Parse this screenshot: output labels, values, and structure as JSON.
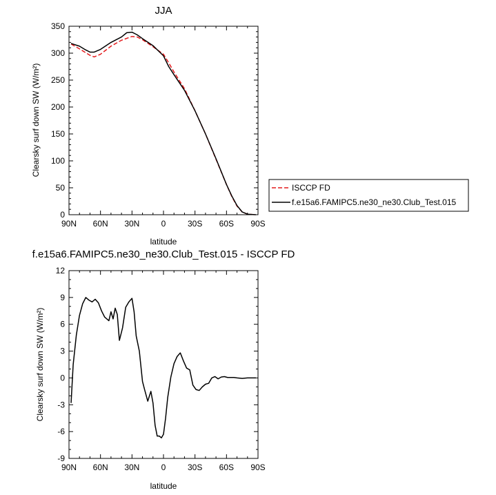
{
  "chart_data": [
    {
      "type": "line",
      "title": "JJA",
      "xlabel": "latitude",
      "ylabel": "Clearsky surf down SW (W/m²)",
      "xlim": [
        90,
        -90
      ],
      "ylim": [
        0,
        350
      ],
      "xticks": [
        90,
        60,
        30,
        0,
        -30,
        -60,
        -90
      ],
      "xtick_labels": [
        "90N",
        "60N",
        "30N",
        "0",
        "30S",
        "60S",
        "90S"
      ],
      "yticks": [
        0,
        50,
        100,
        150,
        200,
        250,
        300,
        350
      ],
      "ytick_labels": [
        "0",
        "50",
        "100",
        "150",
        "200",
        "250",
        "300",
        "350"
      ],
      "grid": false,
      "legend": "right",
      "series": [
        {
          "name": "ISCCP FD",
          "color": "#e41a1c",
          "dash": "dashed",
          "x": [
            88,
            80,
            70,
            66,
            60,
            50,
            40,
            30,
            25,
            20,
            10,
            0,
            -5,
            -10,
            -20,
            -30,
            -40,
            -50,
            -60,
            -65,
            -70,
            -75,
            -80,
            -88
          ],
          "y": [
            317,
            308,
            296,
            293,
            298,
            313,
            324,
            331,
            330,
            325,
            312,
            298,
            282,
            265,
            234,
            193,
            150,
            103,
            56,
            34,
            16,
            5,
            1,
            0
          ]
        },
        {
          "name": "f.e15a6.FAMIPC5.ne30_ne30.Club_Test.015",
          "color": "#000000",
          "dash": "solid",
          "x": [
            88,
            80,
            75,
            70,
            66,
            60,
            50,
            40,
            35,
            30,
            25,
            20,
            10,
            0,
            -5,
            -10,
            -20,
            -30,
            -40,
            -50,
            -60,
            -65,
            -70,
            -75,
            -80,
            -88
          ],
          "y": [
            318,
            313,
            307,
            302,
            302,
            307,
            320,
            330,
            338,
            339,
            334,
            327,
            314,
            295,
            275,
            260,
            231,
            193,
            150,
            104,
            56,
            35,
            17,
            5,
            1,
            0
          ]
        }
      ]
    },
    {
      "type": "line",
      "title": "f.e15a6.FAMIPC5.ne30_ne30.Club_Test.015 - ISCCP FD",
      "xlabel": "latitude",
      "ylabel": "Clearsky surf down SW (W/m²)",
      "xlim": [
        90,
        -90
      ],
      "ylim": [
        -9,
        12
      ],
      "xticks": [
        90,
        60,
        30,
        0,
        -30,
        -60,
        -90
      ],
      "xtick_labels": [
        "90N",
        "60N",
        "30N",
        "0",
        "30S",
        "60S",
        "90S"
      ],
      "yticks": [
        -9,
        -6,
        -3,
        0,
        3,
        6,
        9,
        12
      ],
      "ytick_labels": [
        "-9",
        "-6",
        "-3",
        "0",
        "3",
        "6",
        "9",
        "12"
      ],
      "grid": false,
      "series": [
        {
          "color": "#000000",
          "x": [
            88,
            86,
            83,
            80,
            77,
            74,
            71,
            68,
            65,
            62,
            59,
            56,
            54,
            52,
            50,
            48,
            46,
            44,
            42,
            39,
            36,
            33,
            30,
            28,
            26,
            23,
            20,
            18,
            15,
            12,
            10,
            8,
            6,
            4,
            2,
            0,
            -2,
            -4,
            -7,
            -10,
            -13,
            -16,
            -19,
            -22,
            -25,
            -28,
            -31,
            -34,
            -37,
            -40,
            -43,
            -46,
            -49,
            -52,
            -55,
            -58,
            -61,
            -64,
            -67,
            -70,
            -75,
            -80,
            -85,
            -88
          ],
          "y": [
            -2.8,
            1.5,
            4.8,
            7.0,
            8.3,
            9.0,
            8.7,
            8.5,
            8.8,
            8.4,
            7.5,
            6.8,
            6.6,
            6.4,
            7.4,
            6.6,
            7.8,
            7.1,
            4.2,
            5.6,
            7.9,
            8.5,
            8.9,
            7.4,
            4.7,
            3.0,
            -0.4,
            -1.3,
            -2.6,
            -1.5,
            -2.8,
            -5.3,
            -6.5,
            -6.5,
            -6.7,
            -6.3,
            -4.5,
            -2.2,
            0.1,
            1.6,
            2.4,
            2.8,
            1.9,
            1.1,
            0.9,
            -0.8,
            -1.3,
            -1.4,
            -1.0,
            -0.7,
            -0.6,
            0.0,
            0.15,
            -0.1,
            0.1,
            0.15,
            0.05,
            0.05,
            0.05,
            0.0,
            -0.05,
            0.0,
            0.0,
            0.0
          ]
        }
      ]
    }
  ]
}
